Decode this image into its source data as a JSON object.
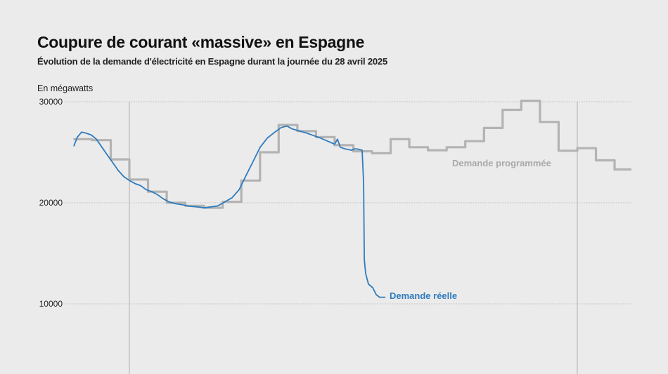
{
  "title": "Coupure de courant «massive» en Espagne",
  "subtitle": "Évolution de la demande d'électricité en Espagne durant la journée du 28 avril 2025",
  "chart_data": {
    "type": "line",
    "title": "Coupure de courant «massive» en Espagne",
    "subtitle": "Évolution de la demande d'électricité en Espagne durant la journée du 28 avril 2025",
    "ylabel": "En mégawatts",
    "ylim": [
      7000,
      30000
    ],
    "yticks": [
      10000,
      20000,
      30000
    ],
    "ytick_labels": [
      "10000",
      "20000",
      "30000"
    ],
    "x_unit": "hours relative to 28 April 2025 00:00",
    "xlim": [
      -3,
      27
    ],
    "x_reference_lines": [
      0,
      24
    ],
    "grid": "horizontal dotted",
    "colors": {
      "reelle": "#2f7bbd",
      "programmee": "#b3b3b3"
    },
    "series": [
      {
        "name": "Demande réelle",
        "x": [
          -2.98,
          -2.79,
          -2.56,
          -2.34,
          -2.03,
          -1.77,
          -1.47,
          -1.21,
          -0.9,
          -0.6,
          -0.3,
          0,
          0.3,
          0.6,
          0.9,
          1.21,
          1.51,
          1.81,
          2.11,
          2.49,
          2.86,
          3.24,
          3.62,
          3.99,
          4.37,
          4.75,
          5.12,
          5.5,
          5.88,
          6.25,
          6.63,
          7.01,
          7.39,
          7.76,
          8.14,
          8.44,
          8.74,
          9.12,
          9.5,
          9.87,
          10.25,
          10.63,
          11.0,
          11.15,
          11.3,
          11.53,
          11.91,
          12.1,
          12.28,
          12.47,
          12.55,
          12.59,
          12.66,
          12.81,
          13.04,
          13.23,
          13.41,
          13.72
        ],
        "values": [
          25600,
          26500,
          27000,
          26900,
          26700,
          26300,
          25500,
          24800,
          24000,
          23200,
          22600,
          22200,
          21900,
          21700,
          21300,
          21100,
          20800,
          20400,
          20100,
          19900,
          19800,
          19650,
          19600,
          19500,
          19600,
          19700,
          20100,
          20500,
          21300,
          22700,
          24100,
          25500,
          26400,
          26950,
          27450,
          27600,
          27300,
          27100,
          26900,
          26650,
          26400,
          26100,
          25800,
          26300,
          25500,
          25350,
          25200,
          25350,
          25300,
          25200,
          22000,
          14400,
          13000,
          11950,
          11600,
          10900,
          10650,
          10650
        ]
      },
      {
        "name": "Demande programmée",
        "step": true,
        "x": [
          -3,
          -2,
          -1,
          0,
          1,
          2,
          3,
          4,
          5,
          6,
          7,
          8,
          9,
          10,
          11,
          12,
          13,
          14,
          15,
          16,
          17,
          18,
          19,
          20,
          21,
          22,
          23,
          24,
          25,
          26,
          26.9
        ],
        "values": [
          26300,
          26200,
          24300,
          22300,
          21100,
          20000,
          19700,
          19500,
          20100,
          22200,
          25000,
          27700,
          27100,
          26500,
          25700,
          25100,
          24900,
          26300,
          25500,
          25200,
          25500,
          26100,
          27400,
          29200,
          30100,
          28000,
          25150,
          25400,
          24200,
          23300,
          23300
        ]
      }
    ]
  }
}
